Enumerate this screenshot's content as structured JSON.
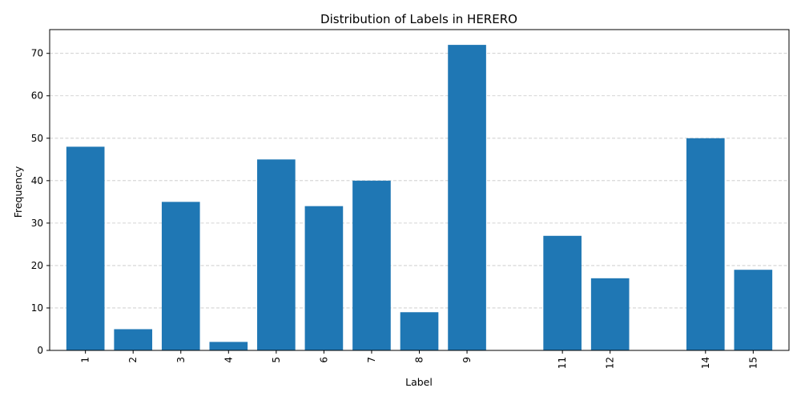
{
  "chart_data": {
    "type": "bar",
    "title": "Distribution of Labels in HERERO",
    "xlabel": "Label",
    "ylabel": "Frequency",
    "x": [
      1,
      2,
      3,
      4,
      5,
      6,
      7,
      8,
      9,
      11,
      12,
      14,
      15
    ],
    "categories": [
      "1",
      "2",
      "3",
      "4",
      "5",
      "6",
      "7",
      "8",
      "9",
      "11",
      "12",
      "14",
      "15"
    ],
    "values": [
      48,
      5,
      35,
      2,
      45,
      34,
      40,
      9,
      72,
      27,
      17,
      50,
      19
    ],
    "xlim": [
      0.25,
      15.75
    ],
    "ylim": [
      0,
      75.6
    ],
    "yticks": [
      0,
      10,
      20,
      30,
      40,
      50,
      60,
      70
    ],
    "grid": "y-dashed",
    "bar_color": "#1f77b4",
    "grid_color": "#b0b0b0"
  }
}
